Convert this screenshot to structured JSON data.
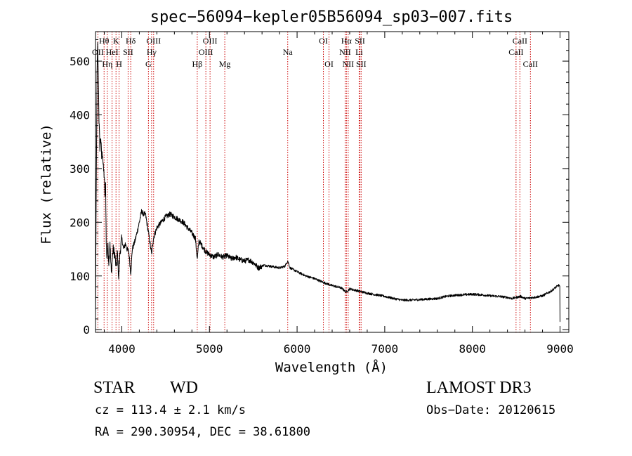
{
  "chart_data": {
    "type": "line",
    "title": "spec−56094−kepler05B56094_sp03−007.fits",
    "xlabel": "Wavelength (Å)",
    "ylabel": "Flux (relative)",
    "xlim": [
      3700,
      9100
    ],
    "ylim": [
      -5,
      555
    ],
    "xticks": [
      {
        "value": 4000,
        "label": "4000"
      },
      {
        "value": 5000,
        "label": "5000"
      },
      {
        "value": 6000,
        "label": "6000"
      },
      {
        "value": 7000,
        "label": "7000"
      },
      {
        "value": 8000,
        "label": "8000"
      },
      {
        "value": 9000,
        "label": "9000"
      }
    ],
    "yticks": [
      {
        "value": 0,
        "label": "0"
      },
      {
        "value": 100,
        "label": "100"
      },
      {
        "value": 200,
        "label": "200"
      },
      {
        "value": 300,
        "label": "300"
      },
      {
        "value": 400,
        "label": "400"
      },
      {
        "value": 500,
        "label": "500"
      }
    ],
    "line_color": "#cc0000",
    "spectrum_color": "#000000",
    "line_markers": [
      {
        "wavelength": 3727,
        "label": "OII",
        "row": 1
      },
      {
        "wavelength": 3798,
        "label": "Hθ",
        "row": 0
      },
      {
        "wavelength": 3835,
        "label": "Hη",
        "row": 2
      },
      {
        "wavelength": 3889,
        "label": "HeI",
        "row": 1
      },
      {
        "wavelength": 3934,
        "label": "K",
        "row": 0
      },
      {
        "wavelength": 3969,
        "label": "H",
        "row": 2
      },
      {
        "wavelength": 4072,
        "label": "SII",
        "row": 1
      },
      {
        "wavelength": 4102,
        "label": "Hδ",
        "row": 0
      },
      {
        "wavelength": 4304,
        "label": "G",
        "row": 2
      },
      {
        "wavelength": 4340,
        "label": "Hγ",
        "row": 1
      },
      {
        "wavelength": 4363,
        "label": "OIII",
        "row": 0
      },
      {
        "wavelength": 4861,
        "label": "Hβ",
        "row": 2
      },
      {
        "wavelength": 4959,
        "label": "OIII",
        "row": 1
      },
      {
        "wavelength": 5007,
        "label": "OIII",
        "row": 0
      },
      {
        "wavelength": 5175,
        "label": "Mg",
        "row": 2
      },
      {
        "wavelength": 5893,
        "label": "Na",
        "row": 1
      },
      {
        "wavelength": 6300,
        "label": "OI",
        "row": 0
      },
      {
        "wavelength": 6364,
        "label": "OI",
        "row": 2
      },
      {
        "wavelength": 6548,
        "label": "NII",
        "row": 1
      },
      {
        "wavelength": 6563,
        "label": "Hα",
        "row": 0
      },
      {
        "wavelength": 6583,
        "label": "NII",
        "row": 2
      },
      {
        "wavelength": 6708,
        "label": "Li",
        "row": 1
      },
      {
        "wavelength": 6717,
        "label": "SII",
        "row": 0
      },
      {
        "wavelength": 6731,
        "label": "SII",
        "row": 2
      },
      {
        "wavelength": 8498,
        "label": "CaII",
        "row": 1
      },
      {
        "wavelength": 8542,
        "label": "CaII",
        "row": 0
      },
      {
        "wavelength": 8662,
        "label": "CaII",
        "row": 2
      }
    ],
    "spectrum_anchors": [
      [
        3700,
        20
      ],
      [
        3705,
        160
      ],
      [
        3712,
        340
      ],
      [
        3718,
        480
      ],
      [
        3725,
        530
      ],
      [
        3732,
        470
      ],
      [
        3740,
        390
      ],
      [
        3750,
        340
      ],
      [
        3760,
        360
      ],
      [
        3770,
        320
      ],
      [
        3780,
        330
      ],
      [
        3790,
        300
      ],
      [
        3800,
        285
      ],
      [
        3808,
        250
      ],
      [
        3815,
        270
      ],
      [
        3822,
        170
      ],
      [
        3830,
        130
      ],
      [
        3840,
        160
      ],
      [
        3852,
        125
      ],
      [
        3865,
        165
      ],
      [
        3880,
        105
      ],
      [
        3900,
        150
      ],
      [
        3920,
        140
      ],
      [
        3935,
        115
      ],
      [
        3950,
        145
      ],
      [
        3965,
        95
      ],
      [
        3980,
        145
      ],
      [
        4000,
        170
      ],
      [
        4020,
        150
      ],
      [
        4040,
        160
      ],
      [
        4060,
        150
      ],
      [
        4080,
        145
      ],
      [
        4102,
        105
      ],
      [
        4120,
        150
      ],
      [
        4150,
        165
      ],
      [
        4180,
        185
      ],
      [
        4200,
        200
      ],
      [
        4225,
        220
      ],
      [
        4250,
        215
      ],
      [
        4270,
        215
      ],
      [
        4290,
        195
      ],
      [
        4310,
        175
      ],
      [
        4340,
        140
      ],
      [
        4360,
        170
      ],
      [
        4400,
        190
      ],
      [
        4450,
        200
      ],
      [
        4500,
        210
      ],
      [
        4550,
        215
      ],
      [
        4600,
        210
      ],
      [
        4650,
        205
      ],
      [
        4700,
        200
      ],
      [
        4750,
        190
      ],
      [
        4800,
        180
      ],
      [
        4840,
        170
      ],
      [
        4861,
        130
      ],
      [
        4880,
        165
      ],
      [
        4920,
        155
      ],
      [
        4960,
        145
      ],
      [
        5000,
        140
      ],
      [
        5050,
        135
      ],
      [
        5100,
        140
      ],
      [
        5150,
        135
      ],
      [
        5200,
        138
      ],
      [
        5250,
        132
      ],
      [
        5300,
        135
      ],
      [
        5350,
        130
      ],
      [
        5400,
        128
      ],
      [
        5450,
        130
      ],
      [
        5500,
        125
      ],
      [
        5560,
        115
      ],
      [
        5620,
        120
      ],
      [
        5700,
        118
      ],
      [
        5800,
        115
      ],
      [
        5860,
        118
      ],
      [
        5893,
        128
      ],
      [
        5920,
        115
      ],
      [
        6000,
        108
      ],
      [
        6100,
        100
      ],
      [
        6200,
        95
      ],
      [
        6300,
        88
      ],
      [
        6400,
        82
      ],
      [
        6500,
        78
      ],
      [
        6563,
        70
      ],
      [
        6600,
        76
      ],
      [
        6700,
        72
      ],
      [
        6800,
        68
      ],
      [
        6900,
        65
      ],
      [
        7000,
        62
      ],
      [
        7100,
        58
      ],
      [
        7200,
        55
      ],
      [
        7300,
        55
      ],
      [
        7400,
        56
      ],
      [
        7500,
        57
      ],
      [
        7600,
        58
      ],
      [
        7700,
        62
      ],
      [
        7800,
        64
      ],
      [
        7900,
        65
      ],
      [
        8000,
        66
      ],
      [
        8100,
        65
      ],
      [
        8200,
        63
      ],
      [
        8300,
        62
      ],
      [
        8400,
        60
      ],
      [
        8450,
        58
      ],
      [
        8500,
        60
      ],
      [
        8550,
        62
      ],
      [
        8600,
        58
      ],
      [
        8700,
        60
      ],
      [
        8800,
        63
      ],
      [
        8900,
        72
      ],
      [
        8960,
        80
      ],
      [
        8990,
        83
      ],
      [
        9000,
        78
      ],
      [
        9003,
        15
      ]
    ]
  },
  "info": {
    "class_label": "STAR",
    "subclass_label": "WD",
    "survey_label": "LAMOST DR3",
    "redshift_text": "cz = 113.4 ± 2.1 km/s",
    "obs_date_text": "Obs−Date: 20120615",
    "coords_text": "RA = 290.30954, DEC =  38.61800"
  }
}
